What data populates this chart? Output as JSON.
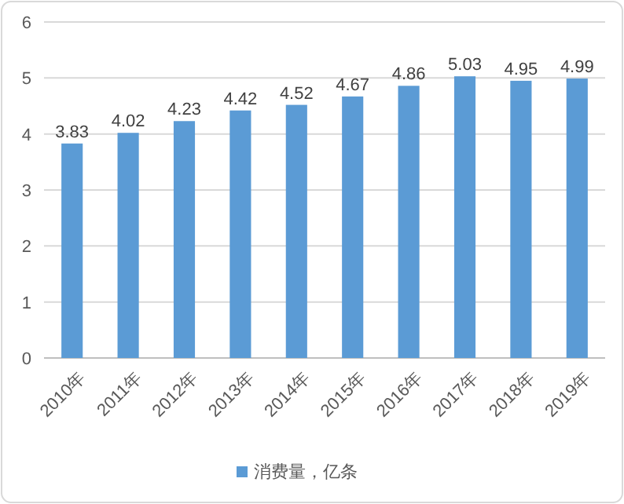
{
  "chart_data": {
    "type": "bar",
    "categories": [
      "2010年",
      "2011年",
      "2012年",
      "2013年",
      "2014年",
      "2015年",
      "2016年",
      "2017年",
      "2018年",
      "2019年"
    ],
    "series": [
      {
        "name": "消费量，亿条",
        "color": "#5b9bd5",
        "values": [
          3.83,
          4.02,
          4.23,
          4.42,
          4.52,
          4.67,
          4.86,
          5.03,
          4.95,
          4.99
        ]
      }
    ],
    "ylim": [
      0,
      6
    ],
    "yticks": [
      0,
      1,
      2,
      3,
      4,
      5,
      6
    ],
    "grid": "y",
    "data_labels": true,
    "legend": "bottom"
  }
}
